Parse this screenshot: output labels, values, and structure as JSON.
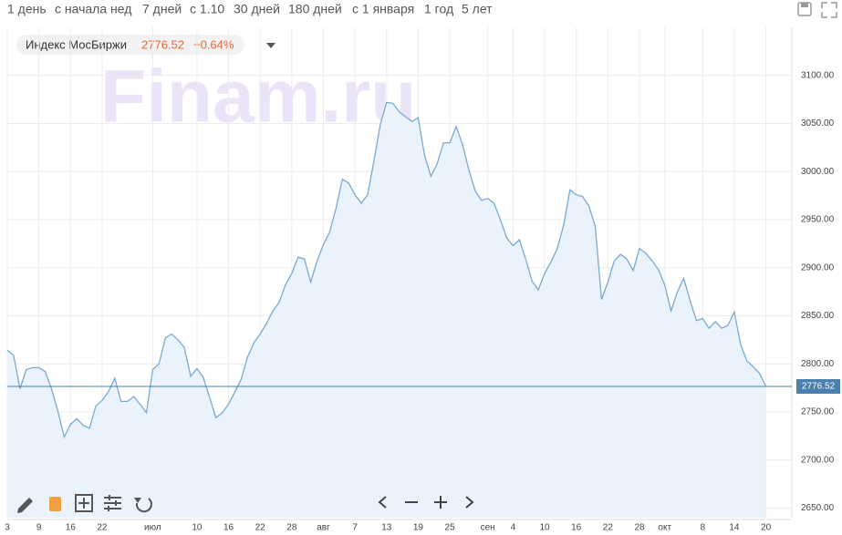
{
  "toolbar": {
    "periods": [
      "1 день",
      "с начала нед",
      "7 дней",
      "с 1.10",
      "30 дней",
      "180 дней",
      "с 1 января",
      "1 год",
      "5 лет"
    ]
  },
  "chart_data": {
    "type": "line",
    "watermark": "Finam.ru",
    "change": "−0.64%",
    "categories": [
      "3",
      null,
      null,
      null,
      null,
      "9",
      null,
      null,
      null,
      null,
      "16",
      null,
      null,
      null,
      null,
      "22",
      null,
      null,
      null,
      null,
      null,
      null,
      null,
      "июл",
      null,
      null,
      null,
      null,
      null,
      null,
      "10",
      null,
      null,
      null,
      null,
      "16",
      null,
      null,
      null,
      null,
      "22",
      null,
      null,
      null,
      null,
      "28",
      null,
      null,
      null,
      null,
      "авг",
      null,
      null,
      null,
      null,
      "7",
      null,
      null,
      null,
      null,
      "13",
      null,
      null,
      null,
      null,
      "19",
      null,
      null,
      null,
      null,
      "25",
      null,
      null,
      null,
      null,
      null,
      "сен",
      null,
      null,
      null,
      "4",
      null,
      null,
      null,
      null,
      "10",
      null,
      null,
      null,
      null,
      "16",
      null,
      null,
      null,
      null,
      "22",
      null,
      null,
      null,
      null,
      "28",
      null,
      null,
      null,
      "окт",
      null,
      null,
      null,
      null,
      null,
      "8",
      null,
      null,
      null,
      null,
      "14",
      null,
      null,
      null,
      null,
      "20"
    ],
    "series": [
      {
        "name": "Индекс МосБиржи",
        "color": "#7aa9d4",
        "values": [
          2814,
          2809,
          2774,
          2794,
          2796,
          2796,
          2792,
          2774,
          2751,
          2724,
          2737,
          2743,
          2736,
          2733,
          2756,
          2762,
          2771,
          2785,
          2761,
          2761,
          2766,
          2758,
          2749,
          2794,
          2800,
          2827,
          2831,
          2825,
          2817,
          2787,
          2795,
          2786,
          2765,
          2744,
          2749,
          2758,
          2771,
          2784,
          2807,
          2822,
          2831,
          2842,
          2855,
          2864,
          2882,
          2894,
          2911,
          2909,
          2885,
          2907,
          2924,
          2937,
          2962,
          2992,
          2988,
          2976,
          2967,
          2976,
          3011,
          3049,
          3072,
          3071,
          3062,
          3057,
          3052,
          3056,
          3017,
          2995,
          3008,
          3030,
          3030,
          3047,
          3028,
          3002,
          2980,
          2970,
          2972,
          2967,
          2950,
          2931,
          2923,
          2929,
          2909,
          2886,
          2877,
          2894,
          2906,
          2920,
          2944,
          2981,
          2976,
          2974,
          2964,
          2943,
          2867,
          2885,
          2907,
          2914,
          2909,
          2897,
          2920,
          2915,
          2907,
          2898,
          2882,
          2855,
          2875,
          2889,
          2866,
          2845,
          2847,
          2837,
          2844,
          2837,
          2840,
          2854,
          2820,
          2803,
          2797,
          2790,
          2776.52
        ]
      }
    ],
    "ylim": [
      2640,
      3150
    ],
    "yticks": [
      {
        "value": 2650,
        "label": "2650.00"
      },
      {
        "value": 2700,
        "label": "2700.00"
      },
      {
        "value": 2750,
        "label": "2750.00"
      },
      {
        "value": 2800,
        "label": "2800.00"
      },
      {
        "value": 2850,
        "label": "2850.00"
      },
      {
        "value": 2900,
        "label": "2900.00"
      },
      {
        "value": 2950,
        "label": "2950.00"
      },
      {
        "value": 3000,
        "label": "3000.00"
      },
      {
        "value": 3050,
        "label": "3050.00"
      },
      {
        "value": 3100,
        "label": "3100.00"
      }
    ],
    "grid": true,
    "area_color": "#eaf3fb",
    "last_line_color": "#4a7fb0"
  }
}
